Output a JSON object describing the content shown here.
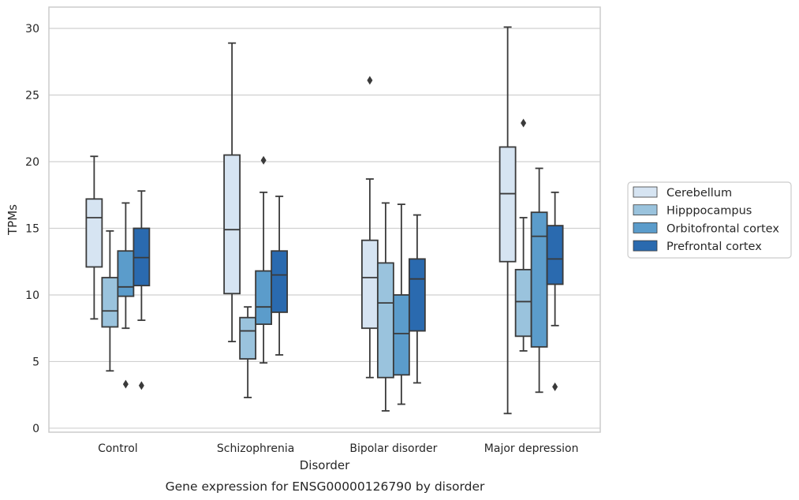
{
  "chart_data": {
    "type": "box",
    "caption": "Gene expression for ENSG00000126790 by disorder",
    "xlabel": "Disorder",
    "ylabel": "TPMs",
    "ylim": [
      -0.3,
      31.6
    ],
    "yticks": [
      0,
      5,
      10,
      15,
      20,
      25,
      30
    ],
    "grid": "horizontal",
    "legend_position": "right",
    "categories": [
      "Control",
      "Schizophrenia",
      "Bipolar disorder",
      "Major depression"
    ],
    "series": [
      {
        "name": "Cerebellum",
        "color": "#d6e4f2",
        "boxes": [
          {
            "whisker_low": 8.2,
            "q1": 12.1,
            "median": 15.8,
            "q3": 17.2,
            "whisker_high": 20.4,
            "outliers": []
          },
          {
            "whisker_low": 6.5,
            "q1": 10.1,
            "median": 14.9,
            "q3": 20.5,
            "whisker_high": 28.9,
            "outliers": []
          },
          {
            "whisker_low": 3.8,
            "q1": 7.5,
            "median": 11.3,
            "q3": 14.1,
            "whisker_high": 18.7,
            "outliers": [
              26.1
            ]
          },
          {
            "whisker_low": 1.1,
            "q1": 12.5,
            "median": 17.6,
            "q3": 21.1,
            "whisker_high": 30.1,
            "outliers": []
          }
        ]
      },
      {
        "name": "Hipppocampus",
        "color": "#9ac3dd",
        "boxes": [
          {
            "whisker_low": 4.3,
            "q1": 7.6,
            "median": 8.8,
            "q3": 11.3,
            "whisker_high": 14.8,
            "outliers": []
          },
          {
            "whisker_low": 2.3,
            "q1": 5.2,
            "median": 7.3,
            "q3": 8.3,
            "whisker_high": 9.1,
            "outliers": []
          },
          {
            "whisker_low": 1.3,
            "q1": 3.8,
            "median": 9.4,
            "q3": 12.4,
            "whisker_high": 16.9,
            "outliers": []
          },
          {
            "whisker_low": 5.8,
            "q1": 6.9,
            "median": 9.5,
            "q3": 11.9,
            "whisker_high": 15.8,
            "outliers": [
              22.9
            ]
          }
        ]
      },
      {
        "name": "Orbitofrontal cortex",
        "color": "#5b9ccb",
        "boxes": [
          {
            "whisker_low": 7.5,
            "q1": 9.9,
            "median": 10.6,
            "q3": 13.3,
            "whisker_high": 16.9,
            "outliers": [
              3.3
            ]
          },
          {
            "whisker_low": 4.9,
            "q1": 7.8,
            "median": 9.1,
            "q3": 11.8,
            "whisker_high": 17.7,
            "outliers": [
              20.1
            ]
          },
          {
            "whisker_low": 1.8,
            "q1": 4.0,
            "median": 7.1,
            "q3": 10.0,
            "whisker_high": 16.8,
            "outliers": []
          },
          {
            "whisker_low": 2.7,
            "q1": 6.1,
            "median": 14.4,
            "q3": 16.2,
            "whisker_high": 19.5,
            "outliers": []
          }
        ]
      },
      {
        "name": "Prefrontal cortex",
        "color": "#2a6aaf",
        "boxes": [
          {
            "whisker_low": 8.1,
            "q1": 10.7,
            "median": 12.8,
            "q3": 15.0,
            "whisker_high": 17.8,
            "outliers": [
              3.2
            ]
          },
          {
            "whisker_low": 5.5,
            "q1": 8.7,
            "median": 11.5,
            "q3": 13.3,
            "whisker_high": 17.4,
            "outliers": []
          },
          {
            "whisker_low": 3.4,
            "q1": 7.3,
            "median": 11.2,
            "q3": 12.7,
            "whisker_high": 16.0,
            "outliers": []
          },
          {
            "whisker_low": 7.7,
            "q1": 10.8,
            "median": 12.7,
            "q3": 15.2,
            "whisker_high": 17.7,
            "outliers": [
              3.1
            ]
          }
        ]
      }
    ]
  }
}
